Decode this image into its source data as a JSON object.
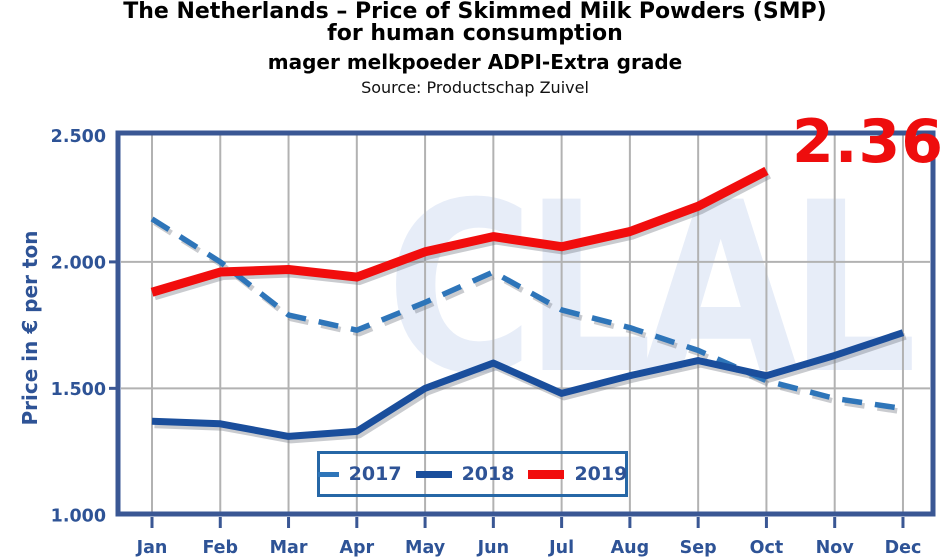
{
  "header": {
    "title_line1": "The Netherlands – Price of Skimmed Milk Powders (SMP)",
    "title_line2": "for human consumption",
    "subtitle": "mager melkpoeder ADPI-Extra grade",
    "source": "Source: Productschap Zuivel"
  },
  "watermark": "CLAL",
  "annotation": {
    "text": "2.36",
    "color": "#ee0d0d"
  },
  "legend": {
    "entries": [
      "2017",
      "2018",
      "2019"
    ]
  },
  "colors": {
    "frame": "#3a5794",
    "grid": "#b2b2b2",
    "axis_text": "#2e5396",
    "series_2017": "#2e75b9",
    "series_2018": "#1a4e9c",
    "series_2019": "#f10d0d",
    "watermark": "#e7edf8",
    "annotation": "#ee0d0d"
  },
  "chart_data": {
    "type": "line",
    "title": "The Netherlands – Price of Skimmed Milk Powders (SMP) for human consumption",
    "xlabel": "",
    "ylabel": "Price in € per ton",
    "categories": [
      "Jan",
      "Feb",
      "Mar",
      "Apr",
      "May",
      "Jun",
      "Jul",
      "Aug",
      "Sep",
      "Oct",
      "Nov",
      "Dec"
    ],
    "y_ticks": [
      {
        "label": "2.500",
        "value": 2.5
      },
      {
        "label": "2.000",
        "value": 2.0
      },
      {
        "label": "1.500",
        "value": 1.5
      },
      {
        "label": "1.000",
        "value": 1.0
      }
    ],
    "ylim": [
      1.0,
      2.5
    ],
    "grid": true,
    "legend_position": "inside-bottom-center",
    "annotation_last_value": 2.36,
    "series": [
      {
        "name": "2017",
        "style": "dashed",
        "color": "#2e75b9",
        "values": [
          2.17,
          2.0,
          1.79,
          1.73,
          1.84,
          1.96,
          1.81,
          1.74,
          1.65,
          1.53,
          1.46,
          1.42
        ]
      },
      {
        "name": "2018",
        "style": "solid",
        "color": "#1a4e9c",
        "values": [
          1.37,
          1.36,
          1.31,
          1.33,
          1.5,
          1.6,
          1.48,
          1.55,
          1.61,
          1.55,
          1.63,
          1.72
        ]
      },
      {
        "name": "2019",
        "style": "solid-thick",
        "color": "#f10d0d",
        "values": [
          1.88,
          1.96,
          1.97,
          1.94,
          2.04,
          2.1,
          2.06,
          2.12,
          2.22,
          2.36,
          null,
          null
        ]
      }
    ]
  }
}
